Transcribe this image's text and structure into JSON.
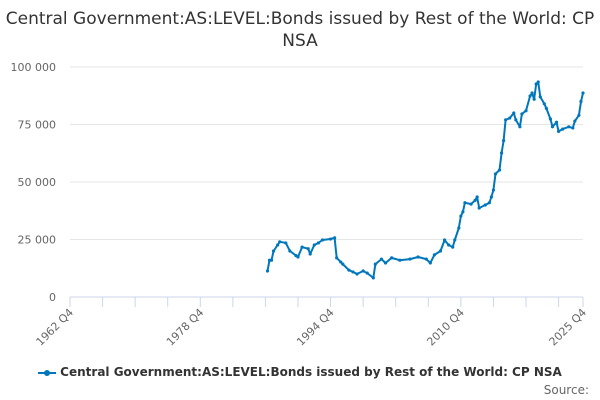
{
  "chart_data": {
    "type": "line",
    "title": "Central Government:AS:LEVEL:Bonds issued by Rest of the World: CP NSA",
    "xlabel": "",
    "ylabel": "",
    "x_ticks": [
      "1962 Q4",
      "1978 Q4",
      "1994 Q4",
      "2010 Q4",
      "2025 Q4"
    ],
    "y_ticks": [
      "0",
      "25 000",
      "50 000",
      "75 000",
      "100 000"
    ],
    "ylim": [
      0,
      100000
    ],
    "xlim": [
      "1962 Q4",
      "2025 Q4"
    ],
    "grid": "horizontal",
    "legend_position": "bottom",
    "color": "#0077bb",
    "series": [
      {
        "name": "Central Government:AS:LEVEL:Bonds issued by Rest of the World: CP NSA",
        "points": [
          [
            "1987 Q1",
            11300
          ],
          [
            "1987 Q2",
            16000
          ],
          [
            "1987 Q3",
            16000
          ],
          [
            "1987 Q4",
            20000
          ],
          [
            "1988 Q2",
            22600
          ],
          [
            "1988 Q3",
            24000
          ],
          [
            "1989 Q2",
            23500
          ],
          [
            "1989 Q4",
            20000
          ],
          [
            "1990 Q3",
            18000
          ],
          [
            "1990 Q4",
            17400
          ],
          [
            "1991 Q2",
            21700
          ],
          [
            "1992 Q1",
            21000
          ],
          [
            "1992 Q2",
            18700
          ],
          [
            "1992 Q4",
            22600
          ],
          [
            "1993 Q2",
            23500
          ],
          [
            "1993 Q4",
            24800
          ],
          [
            "1994 Q4",
            25200
          ],
          [
            "1995 Q2",
            25700
          ],
          [
            "1995 Q3",
            17000
          ],
          [
            "1996 Q1",
            15200
          ],
          [
            "1996 Q2",
            14300
          ],
          [
            "1997 Q1",
            11700
          ],
          [
            "1997 Q3",
            10900
          ],
          [
            "1998 Q1",
            10000
          ],
          [
            "1998 Q4",
            11300
          ],
          [
            "1999 Q2",
            10400
          ],
          [
            "2000 Q1",
            8300
          ],
          [
            "2000 Q2",
            14300
          ],
          [
            "2001 Q1",
            16500
          ],
          [
            "2001 Q3",
            14800
          ],
          [
            "2002 Q2",
            17000
          ],
          [
            "2003 Q2",
            16000
          ],
          [
            "2004 Q3",
            16500
          ],
          [
            "2005 Q3",
            17400
          ],
          [
            "2006 Q3",
            16500
          ],
          [
            "2007 Q1",
            14800
          ],
          [
            "2007 Q3",
            18300
          ],
          [
            "2008 Q2",
            20000
          ],
          [
            "2008 Q4",
            24800
          ],
          [
            "2009 Q2",
            22600
          ],
          [
            "2009 Q4",
            21700
          ],
          [
            "2010 Q1",
            24800
          ],
          [
            "2010 Q3",
            30000
          ],
          [
            "2010 Q4",
            35200
          ],
          [
            "2011 Q1",
            37000
          ],
          [
            "2011 Q2",
            41000
          ],
          [
            "2012 Q1",
            40400
          ],
          [
            "2012 Q3",
            42000
          ],
          [
            "2012 Q4",
            43500
          ],
          [
            "2013 Q1",
            38700
          ],
          [
            "2013 Q4",
            40000
          ],
          [
            "2014 Q2",
            41000
          ],
          [
            "2014 Q3",
            43500
          ],
          [
            "2014 Q4",
            46500
          ],
          [
            "2015 Q1",
            53500
          ],
          [
            "2015 Q3",
            55200
          ],
          [
            "2015 Q4",
            62600
          ],
          [
            "2016 Q1",
            68000
          ],
          [
            "2016 Q2",
            77000
          ],
          [
            "2016 Q4",
            77800
          ],
          [
            "2017 Q2",
            80000
          ],
          [
            "2017 Q3",
            77000
          ],
          [
            "2018 Q1",
            74000
          ],
          [
            "2018 Q2",
            79600
          ],
          [
            "2018 Q4",
            81000
          ],
          [
            "2019 Q2",
            87400
          ],
          [
            "2019 Q3",
            88700
          ],
          [
            "2019 Q4",
            86000
          ],
          [
            "2020 Q1",
            92600
          ],
          [
            "2020 Q2",
            93500
          ],
          [
            "2020 Q3",
            87000
          ],
          [
            "2021 Q1",
            84000
          ],
          [
            "2021 Q2",
            82000
          ],
          [
            "2021 Q4",
            77400
          ],
          [
            "2022 Q1",
            74000
          ],
          [
            "2022 Q3",
            76000
          ],
          [
            "2022 Q4",
            72000
          ],
          [
            "2023 Q2",
            73000
          ],
          [
            "2024 Q1",
            74000
          ],
          [
            "2024 Q3",
            73500
          ],
          [
            "2024 Q4",
            76500
          ],
          [
            "2025 Q2",
            79000
          ],
          [
            "2025 Q3",
            85000
          ],
          [
            "2025 Q4",
            88700
          ]
        ]
      }
    ]
  },
  "legend": {
    "label": "Central Government:AS:LEVEL:Bonds issued by Rest of the World: CP NSA"
  },
  "source": "Source:"
}
